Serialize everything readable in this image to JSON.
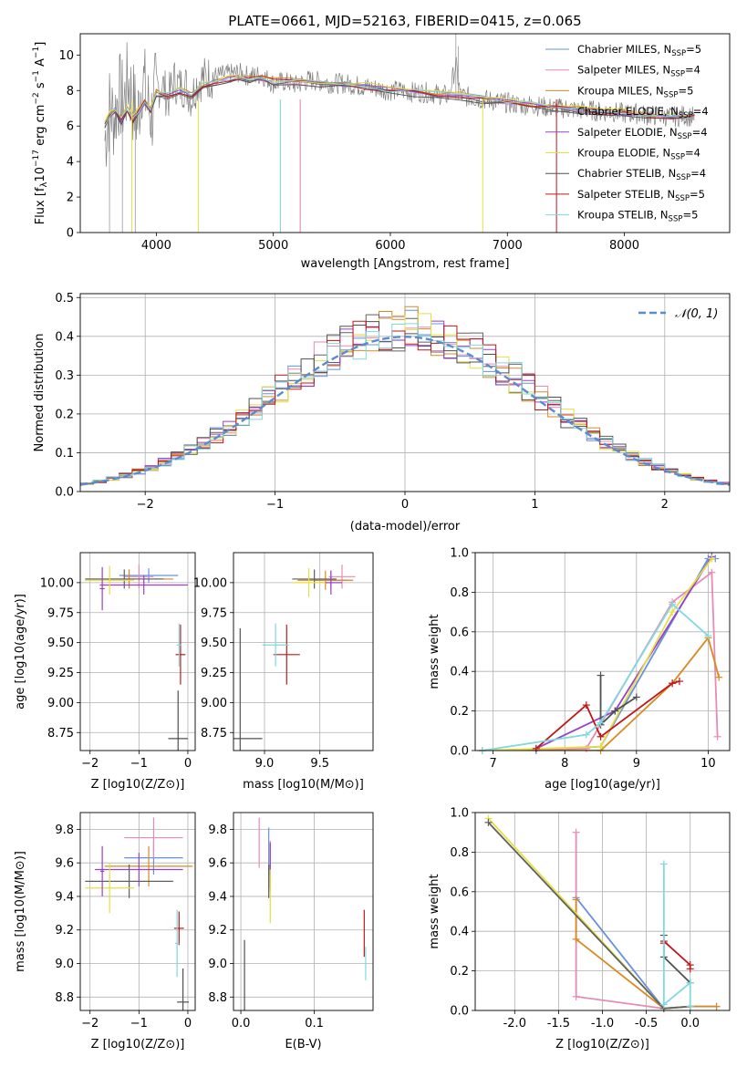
{
  "colors": [
    "#6890e0",
    "#e88ab8",
    "#d88a20",
    "#606060",
    "#9a40c8",
    "#e4e040",
    "#505050",
    "#c01818",
    "#80d8e0"
  ],
  "legend_main": [
    {
      "label": "Chabrier MILES, N",
      "sub": "SSP",
      "suffix": "=5"
    },
    {
      "label": "Salpeter MILES, N",
      "sub": "SSP",
      "suffix": "=4"
    },
    {
      "label": "Kroupa MILES, N",
      "sub": "SSP",
      "suffix": "=5"
    },
    {
      "label": "Chabrier ELODIE, N",
      "sub": "SSP",
      "suffix": "=4"
    },
    {
      "label": "Salpeter ELODIE, N",
      "sub": "SSP",
      "suffix": "=4"
    },
    {
      "label": "Kroupa ELODIE, N",
      "sub": "SSP",
      "suffix": "=4"
    },
    {
      "label": "Chabrier STELIB, N",
      "sub": "SSP",
      "suffix": "=4"
    },
    {
      "label": "Salpeter STELIB, N",
      "sub": "SSP",
      "suffix": "=5"
    },
    {
      "label": "Kroupa STELIB, N",
      "sub": "SSP",
      "suffix": "=5"
    }
  ],
  "chart_data": [
    {
      "id": "spectrum",
      "type": "line",
      "title": "PLATE=0661, MJD=52163, FIBERID=0415, z=0.065",
      "xlabel": "wavelength [Angstrom, rest frame]",
      "ylabel": "Flux [f_λ 10^-17 erg cm^-2 s^-1 A^-1]",
      "xlim": [
        3350,
        8900
      ],
      "ylim": [
        0,
        11.2
      ],
      "xticks": [
        4000,
        5000,
        6000,
        7000,
        8000
      ],
      "yticks": [
        0,
        2,
        4,
        6,
        8,
        10
      ],
      "data_series": {
        "name": "data",
        "color": "#808080",
        "x": [
          3560,
          3600,
          3640,
          3680,
          3720,
          3760,
          3800,
          3840,
          3880,
          3920,
          3960,
          4000,
          4050,
          4100,
          4150,
          4200,
          4250,
          4300,
          4350,
          4400,
          4500,
          4600,
          4700,
          4800,
          4900,
          5000,
          5100,
          5200,
          5300,
          5400,
          5500,
          5600,
          5700,
          5800,
          5900,
          6000,
          6100,
          6200,
          6300,
          6400,
          6500,
          6560,
          6600,
          6700,
          6800,
          6900,
          7000,
          7100,
          7200,
          7300,
          7400,
          7500,
          7600,
          7700,
          7800,
          7900,
          8000,
          8100,
          8200,
          8300,
          8400,
          8500,
          8600
        ],
        "y": [
          5.2,
          7.0,
          6.5,
          7.8,
          7.2,
          8.6,
          7.4,
          6.3,
          8.9,
          7.3,
          6.6,
          8.1,
          8.4,
          7.5,
          8.6,
          8.2,
          8.3,
          7.6,
          8.5,
          8.7,
          8.8,
          8.9,
          9.0,
          8.8,
          8.9,
          8.4,
          8.5,
          8.3,
          8.6,
          8.5,
          8.4,
          8.4,
          8.3,
          8.2,
          8.1,
          8.0,
          8.0,
          7.9,
          7.9,
          7.8,
          7.7,
          9.5,
          7.7,
          7.6,
          7.5,
          7.4,
          7.3,
          7.2,
          7.2,
          7.1,
          7.0,
          7.0,
          6.9,
          6.9,
          6.8,
          6.8,
          6.7,
          6.7,
          6.6,
          6.6,
          6.5,
          6.6,
          6.5
        ]
      },
      "model_x": [
        3560,
        3600,
        3650,
        3700,
        3750,
        3800,
        3850,
        3900,
        3950,
        4000,
        4100,
        4200,
        4300,
        4400,
        4500,
        4600,
        4700,
        4800,
        4900,
        5000,
        5200,
        5400,
        5600,
        5800,
        6000,
        6200,
        6400,
        6600,
        6800,
        7000,
        7200,
        7400,
        7600,
        7800,
        8000,
        8200,
        8400,
        8600
      ],
      "model_y": [
        6.1,
        6.6,
        6.9,
        6.3,
        7.0,
        6.4,
        6.8,
        7.3,
        6.9,
        7.9,
        7.7,
        8.0,
        7.7,
        8.3,
        8.5,
        8.6,
        8.7,
        8.6,
        8.7,
        8.5,
        8.5,
        8.4,
        8.3,
        8.2,
        8.0,
        7.9,
        7.8,
        7.7,
        7.5,
        7.3,
        7.2,
        7.0,
        6.9,
        6.8,
        6.7,
        6.6,
        6.5,
        6.5
      ]
    },
    {
      "id": "residuals",
      "type": "line",
      "xlabel": "(data-model)/error",
      "ylabel": "Normed distribution",
      "xlim": [
        -2.5,
        2.5
      ],
      "ylim": [
        0,
        0.51
      ],
      "xticks": [
        -2,
        -1,
        0,
        1,
        2
      ],
      "yticks": [
        0.0,
        0.1,
        0.2,
        0.3,
        0.4,
        0.5
      ],
      "legend": "N(0,1)",
      "gauss_color": "#5b8bd0"
    },
    {
      "id": "age_vs_Z",
      "type": "scatter",
      "xlabel": "Z [log10(Z/Z⊙)]",
      "ylabel": "age  [log10(age/yr)]",
      "xlim": [
        -2.2,
        0.15
      ],
      "ylim": [
        8.6,
        10.25
      ],
      "xticks": [
        -2,
        -1,
        0
      ],
      "yticks": [
        8.75,
        9.0,
        9.25,
        9.5,
        9.75,
        10.0
      ],
      "points": [
        {
          "x": -0.8,
          "y": 10.06,
          "xe": 0.6,
          "ye": 0.06,
          "c": 0
        },
        {
          "x": -1.0,
          "y": 10.05,
          "xe": 0.3,
          "ye": 0.1,
          "c": 1
        },
        {
          "x": -1.2,
          "y": 10.03,
          "xe": 0.9,
          "ye": 0.08,
          "c": 2
        },
        {
          "x": -1.3,
          "y": 10.03,
          "xe": 0.8,
          "ye": 0.08,
          "c": 3
        },
        {
          "x": -0.9,
          "y": 9.98,
          "xe": 0.9,
          "ye": 0.08,
          "c": 4
        },
        {
          "x": -1.6,
          "y": 10.02,
          "xe": 0.5,
          "ye": 0.12,
          "c": 5
        },
        {
          "x": -0.2,
          "y": 8.7,
          "xe": 0.2,
          "ye": 0.4,
          "c": 6
        },
        {
          "x": -0.15,
          "y": 9.4,
          "xe": 0.1,
          "ye": 0.25,
          "c": 7
        },
        {
          "x": -0.18,
          "y": 9.48,
          "xe": 0.05,
          "ye": 0.18,
          "c": 8
        },
        {
          "x": -1.75,
          "y": 9.95,
          "xe": 0.05,
          "ye": 0.18,
          "c": 4
        }
      ]
    },
    {
      "id": "age_vs_mass",
      "type": "scatter",
      "xlabel": "mass [log10(M/M⊙)]",
      "ylabel": "",
      "xlim": [
        8.72,
        9.98
      ],
      "ylim": [
        8.6,
        10.25
      ],
      "xticks": [
        9.0,
        9.5
      ],
      "yticks": [
        8.75,
        9.0,
        9.25,
        9.5,
        9.75,
        10.0
      ],
      "points": [
        {
          "x": 9.6,
          "y": 10.02,
          "xe": 0.15,
          "ye": 0.08,
          "c": 0
        },
        {
          "x": 9.7,
          "y": 10.05,
          "xe": 0.12,
          "ye": 0.1,
          "c": 1
        },
        {
          "x": 9.55,
          "y": 10.02,
          "xe": 0.25,
          "ye": 0.08,
          "c": 2
        },
        {
          "x": 9.45,
          "y": 10.03,
          "xe": 0.2,
          "ye": 0.08,
          "c": 3
        },
        {
          "x": 9.6,
          "y": 10.0,
          "xe": 0.1,
          "ye": 0.1,
          "c": 4
        },
        {
          "x": 9.4,
          "y": 10.0,
          "xe": 0.15,
          "ye": 0.12,
          "c": 5
        },
        {
          "x": 8.78,
          "y": 8.7,
          "xe": 0.2,
          "ye": 0.92,
          "c": 6
        },
        {
          "x": 9.2,
          "y": 9.4,
          "xe": 0.12,
          "ye": 0.25,
          "c": 7
        },
        {
          "x": 9.1,
          "y": 9.48,
          "xe": 0.12,
          "ye": 0.18,
          "c": 8
        }
      ]
    },
    {
      "id": "weight_vs_age",
      "type": "line",
      "xlabel": "age  [log10(age/yr)]",
      "ylabel": "mass weight",
      "xlim": [
        6.75,
        10.3
      ],
      "ylim": [
        0,
        1.0
      ],
      "xticks": [
        7,
        8,
        9,
        10
      ],
      "yticks": [
        0.0,
        0.2,
        0.4,
        0.6,
        0.8,
        1.0
      ],
      "series": [
        {
          "c": 0,
          "x": [
            6.85,
            7.6,
            8.5,
            10.0,
            10.1
          ],
          "y": [
            0.0,
            0.0,
            0.02,
            0.97,
            0.97
          ]
        },
        {
          "c": 1,
          "x": [
            6.85,
            8.3,
            9.5,
            10.05,
            10.13
          ],
          "y": [
            0.0,
            0.01,
            0.75,
            0.9,
            0.07
          ]
        },
        {
          "c": 2,
          "x": [
            6.85,
            8.5,
            9.5,
            10.0,
            10.15
          ],
          "y": [
            0.0,
            0.0,
            0.34,
            0.57,
            0.37
          ]
        },
        {
          "c": 4,
          "x": [
            7.6,
            8.7,
            10.05
          ],
          "y": [
            0.01,
            0.2,
            0.98
          ]
        },
        {
          "c": 5,
          "x": [
            6.85,
            8.5,
            9.5,
            10.05
          ],
          "y": [
            0.0,
            0.02,
            0.7,
            0.97
          ]
        },
        {
          "c": 6,
          "x": [
            8.5,
            8.5,
            8.7,
            9.0
          ],
          "y": [
            0.38,
            0.13,
            0.2,
            0.27
          ]
        },
        {
          "c": 7,
          "x": [
            7.6,
            8.3,
            8.5,
            9.5,
            9.6
          ],
          "y": [
            0.01,
            0.23,
            0.07,
            0.34,
            0.35
          ]
        },
        {
          "c": 8,
          "x": [
            6.85,
            8.3,
            8.5,
            9.5,
            10.0
          ],
          "y": [
            0.0,
            0.08,
            0.14,
            0.74,
            0.58
          ]
        }
      ]
    },
    {
      "id": "mass_vs_Z",
      "type": "scatter",
      "xlabel": "Z [log10(Z/Z⊙)]",
      "ylabel": "mass [log10(M/M⊙)]",
      "xlim": [
        -2.2,
        0.15
      ],
      "ylim": [
        8.72,
        9.9
      ],
      "xticks": [
        -2,
        -1,
        0
      ],
      "yticks": [
        8.8,
        9.0,
        9.2,
        9.4,
        9.6,
        9.8
      ],
      "points": [
        {
          "x": -0.7,
          "y": 9.63,
          "xe": 0.6,
          "ye": 0.1,
          "c": 0
        },
        {
          "x": -0.7,
          "y": 9.75,
          "xe": 0.6,
          "ye": 0.12,
          "c": 1
        },
        {
          "x": -0.8,
          "y": 9.58,
          "xe": 0.9,
          "ye": 0.12,
          "c": 2
        },
        {
          "x": -1.2,
          "y": 9.49,
          "xe": 0.9,
          "ye": 0.1,
          "c": 3
        },
        {
          "x": -1.0,
          "y": 9.56,
          "xe": 0.9,
          "ye": 0.1,
          "c": 4
        },
        {
          "x": -1.6,
          "y": 9.45,
          "xe": 0.5,
          "ye": 0.15,
          "c": 5
        },
        {
          "x": -0.1,
          "y": 8.77,
          "xe": 0.12,
          "ye": 0.2,
          "c": 6
        },
        {
          "x": -0.18,
          "y": 9.21,
          "xe": 0.1,
          "ye": 0.1,
          "c": 7
        },
        {
          "x": -0.22,
          "y": 9.12,
          "xe": 0.04,
          "ye": 0.2,
          "c": 8
        },
        {
          "x": -1.75,
          "y": 9.55,
          "xe": 0.04,
          "ye": 0.15,
          "c": 4
        }
      ]
    },
    {
      "id": "mass_vs_EBV",
      "type": "scatter",
      "xlabel": "E(B-V)",
      "ylabel": "",
      "xlim": [
        -0.01,
        0.18
      ],
      "ylim": [
        8.72,
        9.9
      ],
      "xticks": [
        0.0,
        0.1
      ],
      "yticks": [
        8.8,
        9.0,
        9.2,
        9.4,
        9.6,
        9.8
      ],
      "points": [
        {
          "x": 0.038,
          "y": 9.63,
          "xe": 0,
          "ye": 0.18,
          "c": 0
        },
        {
          "x": 0.025,
          "y": 9.72,
          "xe": 0,
          "ye": 0.15,
          "c": 1
        },
        {
          "x": 0.04,
          "y": 9.58,
          "xe": 0,
          "ye": 0.15,
          "c": 2
        },
        {
          "x": 0.038,
          "y": 9.49,
          "xe": 0,
          "ye": 0.1,
          "c": 3
        },
        {
          "x": 0.04,
          "y": 9.62,
          "xe": 0,
          "ye": 0.1,
          "c": 4
        },
        {
          "x": 0.04,
          "y": 9.4,
          "xe": 0,
          "ye": 0.16,
          "c": 5
        },
        {
          "x": 0.005,
          "y": 8.9,
          "xe": 0,
          "ye": 0.24,
          "c": 6
        },
        {
          "x": 0.168,
          "y": 9.18,
          "xe": 0,
          "ye": 0.14,
          "c": 7
        },
        {
          "x": 0.17,
          "y": 9.0,
          "xe": 0,
          "ye": 0.1,
          "c": 8
        }
      ]
    },
    {
      "id": "weight_vs_Z",
      "type": "line",
      "xlabel": "Z [log10(Z/Z⊙)]",
      "ylabel": "mass weight",
      "xlim": [
        -2.45,
        0.45
      ],
      "ylim": [
        0,
        1.0
      ],
      "xticks": [
        -2.0,
        -1.5,
        -1.0,
        -0.5,
        0.0
      ],
      "yticks": [
        0.0,
        0.2,
        0.4,
        0.6,
        0.8,
        1.0
      ],
      "series": [
        {
          "c": 0,
          "x": [
            -1.3,
            -0.3,
            0.0,
            0.3
          ],
          "y": [
            0.57,
            0.01,
            0.02,
            0.02
          ]
        },
        {
          "c": 1,
          "x": [
            -1.3,
            -1.3,
            -0.3,
            0.0
          ],
          "y": [
            0.9,
            0.07,
            0.01,
            0.02
          ]
        },
        {
          "c": 2,
          "x": [
            -1.3,
            -1.3,
            -0.3,
            0.0,
            0.3
          ],
          "y": [
            0.56,
            0.36,
            0.01,
            0.02,
            0.02
          ]
        },
        {
          "c": 5,
          "x": [
            -2.3,
            -0.3,
            0.0
          ],
          "y": [
            0.97,
            0.01,
            0.02
          ]
        },
        {
          "c": 3,
          "x": [
            -2.3,
            -0.3,
            0.0
          ],
          "y": [
            0.95,
            0.01,
            0.02
          ]
        },
        {
          "c": 6,
          "x": [
            -0.3,
            -0.3,
            0.0
          ],
          "y": [
            0.38,
            0.27,
            0.14
          ]
        },
        {
          "c": 7,
          "x": [
            -0.3,
            -0.3,
            0.0,
            0.0
          ],
          "y": [
            0.34,
            0.35,
            0.23,
            0.21
          ]
        },
        {
          "c": 8,
          "x": [
            -0.3,
            -0.3,
            0.0,
            0.0
          ],
          "y": [
            0.74,
            0.03,
            0.14,
            0.02
          ]
        }
      ]
    }
  ]
}
